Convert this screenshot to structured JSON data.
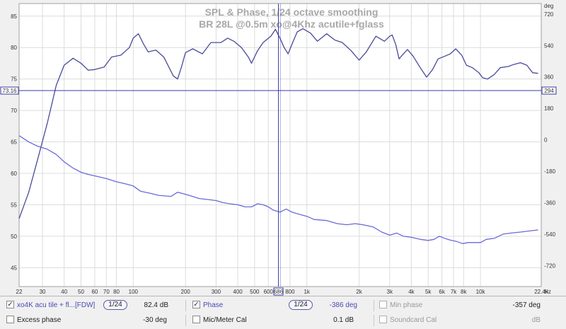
{
  "chart_data": {
    "type": "line",
    "title": "SPL & Phase, 1/24 octave smoothing",
    "subtitle": "BR 28L @0.5m  xo@4Khz acutile+fglass",
    "x_scale": "log",
    "xlim": [
      22,
      22400
    ],
    "x_ticks": [
      "22",
      "30",
      "40",
      "50",
      "60",
      "70",
      "80",
      "100",
      "200",
      "300",
      "400",
      "500",
      "600",
      "686",
      "800",
      "1k",
      "2k",
      "3k",
      "4k",
      "5k",
      "6k",
      "7k",
      "8k",
      "10k",
      "22.4k"
    ],
    "x_unit": "Hz",
    "ylim_left": [
      42,
      87
    ],
    "y_ticks_left": [
      "45",
      "50",
      "55",
      "60",
      "65",
      "70",
      "75",
      "80",
      "85"
    ],
    "ylim_right": [
      -840,
      780
    ],
    "y_ticks_right": [
      "-720",
      "-540",
      "-360",
      "-180",
      "0",
      "180",
      "360",
      "540",
      "720"
    ],
    "y_unit_right": "deg",
    "grid": true,
    "cursor": {
      "x": 686,
      "x_label": "686",
      "y_left": 73.16,
      "y_left_label": "73.16",
      "y_right_label": "294"
    },
    "series": [
      {
        "name": "xo4K acu tile + fl...[FDW]",
        "axis": "left",
        "color": "#4a4a9a",
        "points": [
          [
            22,
            52.8
          ],
          [
            25,
            57
          ],
          [
            28,
            62
          ],
          [
            32,
            68
          ],
          [
            36,
            74
          ],
          [
            40,
            77.2
          ],
          [
            45,
            78.3
          ],
          [
            50,
            77.5
          ],
          [
            55,
            76.4
          ],
          [
            60,
            76.5
          ],
          [
            68,
            76.9
          ],
          [
            75,
            78.5
          ],
          [
            85,
            78.8
          ],
          [
            95,
            80
          ],
          [
            100,
            81.5
          ],
          [
            107,
            82.2
          ],
          [
            115,
            80.5
          ],
          [
            122,
            79.3
          ],
          [
            135,
            79.6
          ],
          [
            150,
            78.5
          ],
          [
            170,
            75.5
          ],
          [
            180,
            75
          ],
          [
            190,
            77
          ],
          [
            200,
            79.2
          ],
          [
            220,
            79.8
          ],
          [
            250,
            79
          ],
          [
            280,
            80.8
          ],
          [
            320,
            80.8
          ],
          [
            350,
            81.5
          ],
          [
            380,
            81
          ],
          [
            420,
            80
          ],
          [
            460,
            78.5
          ],
          [
            480,
            77.5
          ],
          [
            520,
            79.5
          ],
          [
            560,
            80.8
          ],
          [
            620,
            81.8
          ],
          [
            660,
            82.9
          ],
          [
            700,
            81.5
          ],
          [
            740,
            80
          ],
          [
            780,
            79
          ],
          [
            820,
            80.5
          ],
          [
            880,
            82.5
          ],
          [
            950,
            83
          ],
          [
            1050,
            82.3
          ],
          [
            1150,
            81
          ],
          [
            1300,
            82.2
          ],
          [
            1450,
            81.2
          ],
          [
            1600,
            80.8
          ],
          [
            1800,
            79.5
          ],
          [
            2000,
            78
          ],
          [
            2200,
            79.3
          ],
          [
            2500,
            81.8
          ],
          [
            2800,
            81
          ],
          [
            3000,
            81.8
          ],
          [
            3100,
            82
          ],
          [
            3250,
            80.5
          ],
          [
            3400,
            78.2
          ],
          [
            3600,
            79
          ],
          [
            3800,
            79.7
          ],
          [
            4100,
            78.6
          ],
          [
            4500,
            76.8
          ],
          [
            4900,
            75.3
          ],
          [
            5300,
            76.5
          ],
          [
            5700,
            78.2
          ],
          [
            6200,
            78.6
          ],
          [
            6700,
            79
          ],
          [
            7200,
            79.8
          ],
          [
            7800,
            78.8
          ],
          [
            8300,
            77.2
          ],
          [
            9000,
            76.8
          ],
          [
            9800,
            76
          ],
          [
            10300,
            75.2
          ],
          [
            11000,
            75
          ],
          [
            12000,
            75.7
          ],
          [
            13000,
            76.8
          ],
          [
            14500,
            77
          ],
          [
            15500,
            77.3
          ],
          [
            17000,
            77.6
          ],
          [
            18500,
            77.2
          ],
          [
            20000,
            76
          ],
          [
            21500,
            75.9
          ]
        ]
      },
      {
        "name": "Phase",
        "axis": "right",
        "color": "#6a6ad8",
        "points": [
          [
            22,
            24
          ],
          [
            25,
            -12
          ],
          [
            28,
            -36
          ],
          [
            32,
            -54
          ],
          [
            36,
            -84
          ],
          [
            40,
            -126
          ],
          [
            45,
            -162
          ],
          [
            50,
            -186
          ],
          [
            55,
            -198
          ],
          [
            62,
            -210
          ],
          [
            70,
            -222
          ],
          [
            80,
            -240
          ],
          [
            90,
            -252
          ],
          [
            100,
            -264
          ],
          [
            110,
            -294
          ],
          [
            125,
            -306
          ],
          [
            140,
            -318
          ],
          [
            165,
            -324
          ],
          [
            180,
            -300
          ],
          [
            190,
            -306
          ],
          [
            210,
            -318
          ],
          [
            240,
            -336
          ],
          [
            270,
            -342
          ],
          [
            300,
            -348
          ],
          [
            330,
            -360
          ],
          [
            360,
            -366
          ],
          [
            400,
            -372
          ],
          [
            440,
            -384
          ],
          [
            480,
            -384
          ],
          [
            520,
            -366
          ],
          [
            560,
            -372
          ],
          [
            600,
            -384
          ],
          [
            640,
            -402
          ],
          [
            700,
            -414
          ],
          [
            760,
            -396
          ],
          [
            820,
            -414
          ],
          [
            900,
            -426
          ],
          [
            1000,
            -438
          ],
          [
            1100,
            -456
          ],
          [
            1300,
            -462
          ],
          [
            1500,
            -480
          ],
          [
            1700,
            -486
          ],
          [
            1900,
            -480
          ],
          [
            2100,
            -486
          ],
          [
            2400,
            -498
          ],
          [
            2700,
            -528
          ],
          [
            3000,
            -546
          ],
          [
            3300,
            -534
          ],
          [
            3600,
            -552
          ],
          [
            4000,
            -558
          ],
          [
            4500,
            -570
          ],
          [
            5000,
            -576
          ],
          [
            5400,
            -570
          ],
          [
            5800,
            -552
          ],
          [
            6300,
            -566
          ],
          [
            6800,
            -576
          ],
          [
            7300,
            -582
          ],
          [
            7900,
            -594
          ],
          [
            8500,
            -588
          ],
          [
            9200,
            -588
          ],
          [
            10000,
            -588
          ],
          [
            10800,
            -570
          ],
          [
            12000,
            -564
          ],
          [
            13500,
            -540
          ],
          [
            15000,
            -534
          ],
          [
            17000,
            -528
          ],
          [
            19000,
            -522
          ],
          [
            21500,
            -516
          ]
        ]
      }
    ]
  },
  "legend": {
    "row1": {
      "spl_check": "✓",
      "spl_name": "xo4K acu tile + fl...[FDW]",
      "spl_smoothing": "1/24",
      "spl_value": "82.4 dB",
      "phase_check": "✓",
      "phase_name": "Phase",
      "phase_smoothing": "1/24",
      "phase_value": "-386 deg",
      "minphase_name": "Min phase",
      "minphase_value": "-357 deg"
    },
    "row2": {
      "excess_name": "Excess phase",
      "excess_value": "-30 deg",
      "mic_name": "Mic/Meter Cal",
      "mic_value": "0.1 dB",
      "soundcard_name": "Soundcard Cal",
      "soundcard_value": "dB"
    }
  },
  "colors": {
    "plot_bg": "#ffffff",
    "grid": "#dcdcdc",
    "axis_frame": "#a0a0a0",
    "cursor": "#3a3aa8",
    "title": "#a8a8a8"
  }
}
